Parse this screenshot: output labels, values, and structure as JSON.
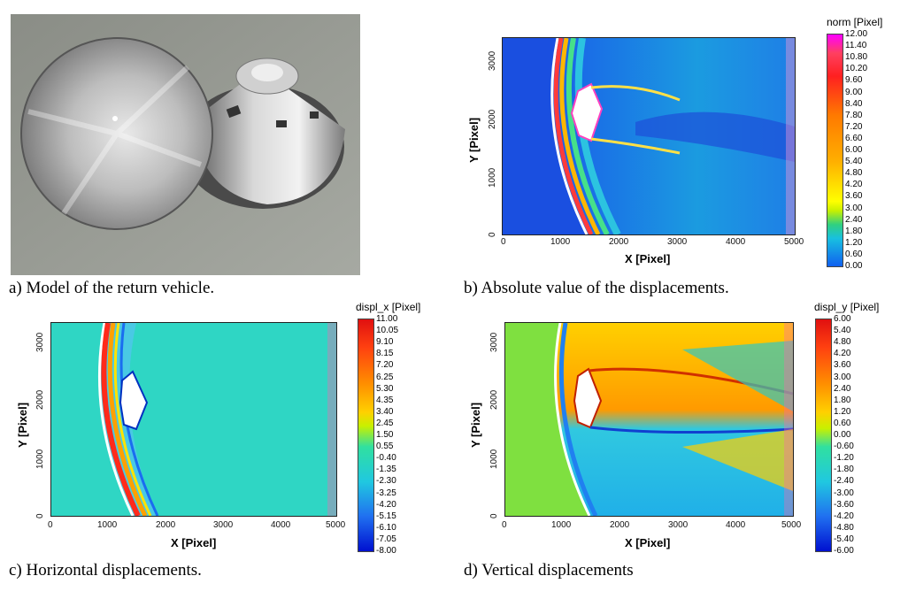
{
  "captions": {
    "a": "a) Model of the return vehicle.",
    "b": "b) Absolute value of the displacements.",
    "c": "c) Horizontal displacements.",
    "d": "d) Vertical displacements"
  },
  "axes": {
    "xlabel": "X [Pixel]",
    "ylabel": "Y [Pixel]",
    "xticks": [
      "0",
      "1000",
      "2000",
      "3000",
      "4000",
      "5000"
    ],
    "yticks": [
      "0",
      "1000",
      "2000",
      "3000"
    ]
  },
  "colorbars": {
    "b": {
      "title": "norm [Pixel]",
      "ticks": [
        "12.00",
        "11.40",
        "10.80",
        "10.20",
        "9.60",
        "9.00",
        "8.40",
        "7.80",
        "7.20",
        "6.60",
        "6.00",
        "5.40",
        "4.80",
        "4.20",
        "3.60",
        "3.00",
        "2.40",
        "1.80",
        "1.20",
        "0.60",
        "0.00"
      ]
    },
    "c": {
      "title": "displ_x [Pixel]",
      "ticks": [
        "11.00",
        "10.05",
        "9.10",
        "8.15",
        "7.20",
        "6.25",
        "5.30",
        "4.35",
        "3.40",
        "2.45",
        "1.50",
        "0.55",
        "-0.40",
        "-1.35",
        "-2.30",
        "-3.25",
        "-4.20",
        "-5.15",
        "-6.10",
        "-7.05",
        "-8.00"
      ]
    },
    "d": {
      "title": "displ_y [Pixel]",
      "ticks": [
        "6.00",
        "5.40",
        "4.80",
        "4.20",
        "3.60",
        "3.00",
        "2.40",
        "1.80",
        "1.20",
        "0.60",
        "0.00",
        "-0.60",
        "-1.20",
        "-1.80",
        "-2.40",
        "-3.00",
        "-3.60",
        "-4.20",
        "-4.80",
        "-5.40",
        "-6.00"
      ]
    }
  }
}
